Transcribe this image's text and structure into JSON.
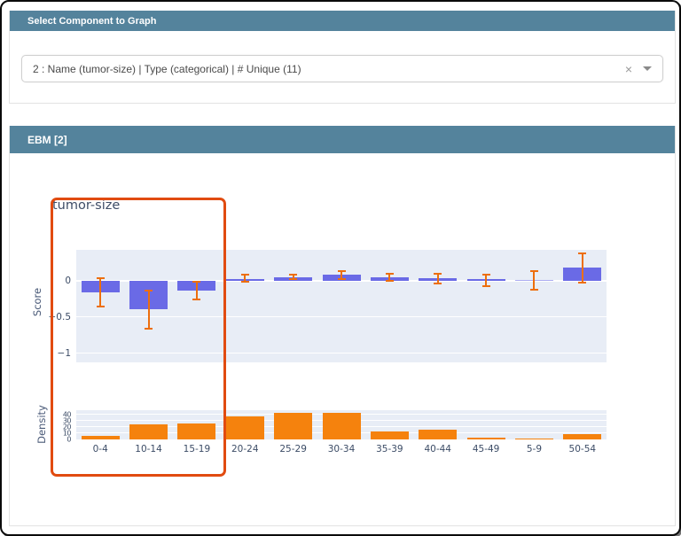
{
  "select_card": {
    "header": "Select Component to Graph",
    "dropdown": {
      "value": "2 : Name (tumor-size) | Type (categorical) | # Unique (11)",
      "clear_icon": "×"
    }
  },
  "ebm_card": {
    "header": "EBM [2]"
  },
  "chart_data": {
    "type": "bar",
    "title": "tumor-size",
    "categories": [
      "0-4",
      "10-14",
      "15-19",
      "20-24",
      "25-29",
      "30-34",
      "35-39",
      "40-44",
      "45-49",
      "5-9",
      "50-54"
    ],
    "series": [
      {
        "name": "Score",
        "values": [
          -0.16,
          -0.39,
          -0.13,
          0.03,
          0.05,
          0.08,
          0.05,
          0.04,
          0.02,
          0.01,
          0.18
        ],
        "error_high": [
          0.04,
          -0.13,
          -0.01,
          0.08,
          0.09,
          0.13,
          0.1,
          0.1,
          0.09,
          0.14,
          0.38
        ],
        "error_low": [
          -0.36,
          -0.66,
          -0.26,
          -0.01,
          0.02,
          0.03,
          0.0,
          -0.04,
          -0.07,
          -0.12,
          -0.02
        ]
      },
      {
        "name": "Density",
        "values": [
          6,
          24,
          25,
          37,
          43,
          43,
          13,
          16,
          3,
          1,
          8
        ]
      }
    ],
    "score_axis": {
      "label": "Score",
      "ticks": [
        0,
        -0.5,
        -1
      ],
      "range": [
        -1.15,
        0.43
      ],
      "grid": true
    },
    "density_axis": {
      "label": "Density",
      "ticks": [
        0,
        10,
        20,
        30,
        40
      ],
      "range": [
        0,
        47
      ],
      "grid": true
    },
    "legend": "none",
    "colors": {
      "score_bar": "#6A6AE6",
      "density_bar": "#F5820D",
      "error_bar": "#ED6E0D",
      "plot_background": "#E8EDF6",
      "annotation_box": "#E14B10",
      "header_bar": "#54839C"
    },
    "annotation_selection": {
      "categories": [
        "0-4",
        "10-14",
        "15-19"
      ]
    }
  }
}
